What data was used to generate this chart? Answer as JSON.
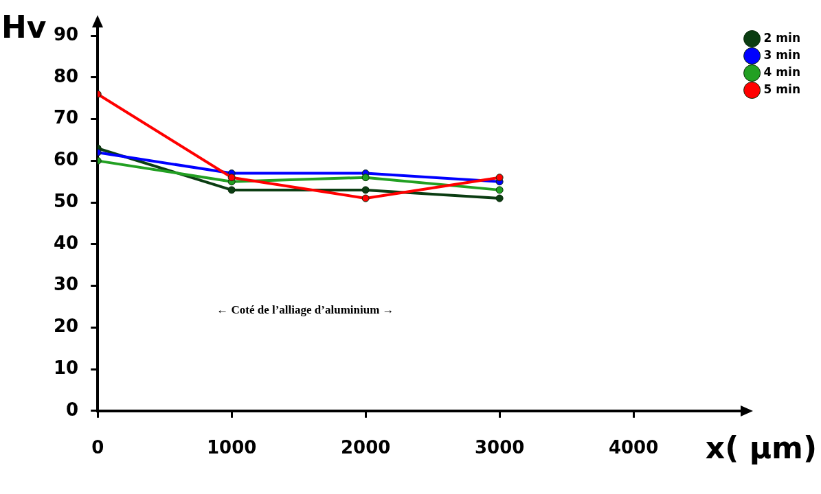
{
  "chart_data": {
    "type": "line",
    "xlabel": "x( µm)",
    "ylabel": "Hv",
    "x": [
      0,
      1000,
      2000,
      3000
    ],
    "series": [
      {
        "name": "2 min",
        "color": "#0b3d12",
        "values": [
          63,
          53,
          53,
          51
        ]
      },
      {
        "name": "3 min",
        "color": "#0000ff",
        "values": [
          62,
          57,
          57,
          55
        ]
      },
      {
        "name": "4 min",
        "color": "#22a022",
        "values": [
          60,
          55,
          56,
          53
        ]
      },
      {
        "name": "5 min",
        "color": "#ff0000",
        "values": [
          76,
          56,
          51,
          56
        ]
      }
    ],
    "xlim": [
      0,
      4800
    ],
    "xticks": [
      0,
      1000,
      2000,
      3000,
      4000
    ],
    "ylim": [
      0,
      92
    ],
    "yticks": [
      0,
      10,
      20,
      30,
      40,
      50,
      60,
      70,
      80,
      90
    ],
    "annotations": [
      "← Coté de l’alliage d’aluminium →"
    ],
    "grid": false,
    "legend": "top right",
    "marker": "circle",
    "line_style": "solid"
  }
}
